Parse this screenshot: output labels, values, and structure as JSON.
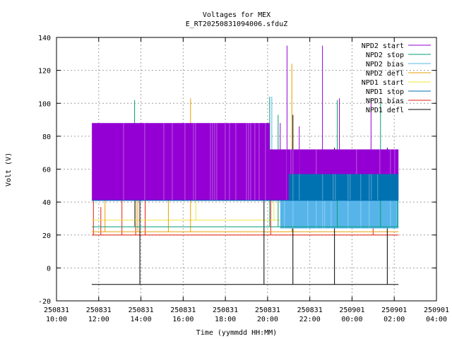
{
  "chart_data": {
    "type": "line",
    "title": "Voltages for MEX",
    "subtitle": "E_RT20250831094006.sfduZ",
    "xlabel": "Time (yymmdd HH:MM)",
    "ylabel": "Volt (V)",
    "grid": true,
    "legend_position": "top-right",
    "xlim_hours": [
      10,
      28
    ],
    "ylim": [
      -20,
      140
    ],
    "y_ticks": [
      -20,
      0,
      20,
      40,
      60,
      80,
      100,
      120,
      140
    ],
    "x_ticks": [
      {
        "date": "250831",
        "time": "10:00",
        "h": 10
      },
      {
        "date": "250831",
        "time": "12:00",
        "h": 12
      },
      {
        "date": "250831",
        "time": "14:00",
        "h": 14
      },
      {
        "date": "250831",
        "time": "16:00",
        "h": 16
      },
      {
        "date": "250831",
        "time": "18:00",
        "h": 18
      },
      {
        "date": "250831",
        "time": "20:00",
        "h": 20
      },
      {
        "date": "250831",
        "time": "22:00",
        "h": 22
      },
      {
        "date": "250901",
        "time": "00:00",
        "h": 24
      },
      {
        "date": "250901",
        "time": "02:00",
        "h": 26
      },
      {
        "date": "250901",
        "time": "04:00",
        "h": 28
      }
    ],
    "series": [
      {
        "name": "NPD2 start",
        "color": "#9400d3",
        "segments": [
          {
            "x": [
              11.67,
              20.1
            ],
            "low": 41,
            "high": 88
          },
          {
            "x": [
              20.1,
              26.2
            ],
            "low": 41,
            "high": 72
          }
        ],
        "spikes": [
          {
            "x": 19.85,
            "y": 72
          },
          {
            "x": 20.6,
            "y": 88
          },
          {
            "x": 20.92,
            "y": 135
          },
          {
            "x": 21.5,
            "y": 86
          },
          {
            "x": 22.6,
            "y": 135
          },
          {
            "x": 23.4,
            "y": 103
          },
          {
            "x": 24.9,
            "y": 103
          },
          {
            "x": 25.65,
            "y": 72
          }
        ]
      },
      {
        "name": "NPD2 stop",
        "color": "#009e73",
        "base": 25,
        "spikes": [
          {
            "x": 13.7,
            "y": 102
          },
          {
            "x": 20.1,
            "y": 104
          },
          {
            "x": 20.5,
            "y": 93
          },
          {
            "x": 23.3,
            "y": 102
          },
          {
            "x": 25.35,
            "y": 100
          },
          {
            "x": 26.15,
            "y": 72
          }
        ]
      },
      {
        "name": "NPD2 bias",
        "color": "#56b4e9",
        "segments": [
          {
            "x": [
              20.6,
              26.2
            ],
            "low": 24,
            "high": 41
          }
        ],
        "base": 41,
        "spikes": [
          {
            "x": 20.2,
            "y": 104
          },
          {
            "x": 21.7,
            "y": 57
          }
        ]
      },
      {
        "name": "NPD2 defl",
        "color": "#e69f00",
        "base": 22,
        "spikes": [
          {
            "x": 13.85,
            "y": 63
          },
          {
            "x": 15.3,
            "y": 62
          },
          {
            "x": 16.35,
            "y": 103
          },
          {
            "x": 21.15,
            "y": 124
          },
          {
            "x": 12.3,
            "y": 42
          }
        ]
      },
      {
        "name": "NPD1 start",
        "color": "#f0e442",
        "base": 29,
        "spikes": [
          {
            "x": 16.6,
            "y": 41
          },
          {
            "x": 20.3,
            "y": 57
          }
        ]
      },
      {
        "name": "NPD1 stop",
        "color": "#0072b2",
        "segments": [
          {
            "x": [
              21.0,
              26.2
            ],
            "low": 41,
            "high": 57
          }
        ],
        "base": 41,
        "spikes": [
          {
            "x": 21.4,
            "y": 57
          }
        ]
      },
      {
        "name": "NPD1 bias",
        "color": "#e51e10",
        "base": 20,
        "spikes": [
          {
            "x": 11.75,
            "y": 42
          },
          {
            "x": 12.1,
            "y": 37
          },
          {
            "x": 13.1,
            "y": 41
          },
          {
            "x": 13.75,
            "y": 68
          },
          {
            "x": 14.2,
            "y": 42
          },
          {
            "x": 20.15,
            "y": 62
          },
          {
            "x": 25.0,
            "y": 38
          }
        ]
      },
      {
        "name": "NPD1 defl",
        "color": "#000000",
        "base": -10,
        "spikes": [
          {
            "x": 13.95,
            "y": 52
          },
          {
            "x": 19.83,
            "y": 72
          },
          {
            "x": 21.2,
            "y": 93
          },
          {
            "x": 23.17,
            "y": 73
          },
          {
            "x": 25.67,
            "y": 73
          }
        ]
      }
    ],
    "x_range_data": [
      11.67,
      26.2
    ]
  }
}
